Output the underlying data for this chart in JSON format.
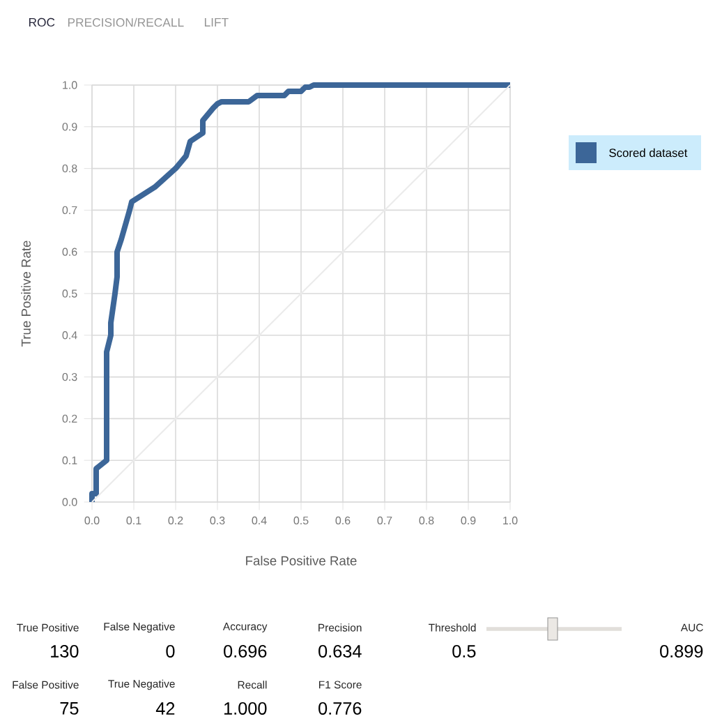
{
  "chart_data": {
    "type": "line",
    "xlabel": "False Positive Rate",
    "ylabel": "True Positive Rate",
    "series": [
      {
        "name": "Scored dataset",
        "color": "#3c6698",
        "x": [
          0,
          0,
          0.01,
          0.01,
          0.035,
          0.035,
          0.045,
          0.045,
          0.055,
          0.06,
          0.06,
          0.07,
          0.09,
          0.095,
          0.15,
          0.2,
          0.225,
          0.235,
          0.265,
          0.265,
          0.29,
          0.3,
          0.31,
          0.375,
          0.395,
          0.46,
          0.47,
          0.5,
          0.51,
          0.52,
          0.53,
          1.0
        ],
        "values": [
          0,
          0.02,
          0.02,
          0.08,
          0.1,
          0.36,
          0.4,
          0.43,
          0.5,
          0.54,
          0.6,
          0.63,
          0.7,
          0.72,
          0.755,
          0.8,
          0.83,
          0.865,
          0.885,
          0.915,
          0.945,
          0.955,
          0.96,
          0.96,
          0.975,
          0.975,
          0.985,
          0.985,
          0.995,
          0.995,
          1.0,
          1.0
        ]
      },
      {
        "color": "#ebebeb",
        "x": [
          0,
          1
        ],
        "values": [
          0,
          1
        ]
      }
    ],
    "xlim": [
      0,
      1
    ],
    "ylim": [
      0,
      1
    ],
    "xticks": [
      {
        "value": 0,
        "label": "0.0"
      },
      0.1,
      0.2,
      0.3,
      0.4,
      0.5,
      0.6,
      0.7,
      0.8,
      0.9,
      {
        "value": 1,
        "label": "1.0"
      }
    ],
    "yticks": [
      {
        "value": 0,
        "label": "0.0"
      },
      0.1,
      0.2,
      0.3,
      0.4,
      0.5,
      0.6,
      0.7,
      0.8,
      0.9,
      {
        "value": 1,
        "label": "1.0"
      }
    ],
    "grid": true,
    "legend": "top right",
    "marker": "none",
    "line_style": "solid",
    "annotations": [
      "ROC",
      "PRECISION/RECALL",
      "LIFT",
      "True Positive",
      "130",
      "False Negative",
      "0",
      "Accuracy",
      "0.696",
      "Precision",
      "0.634",
      "Threshold",
      "0.5",
      "AUC",
      "0.899",
      "False Positive",
      "75",
      "True Negative",
      "42",
      "Recall",
      "1.000",
      "F1 Score",
      "0.776"
    ]
  }
}
